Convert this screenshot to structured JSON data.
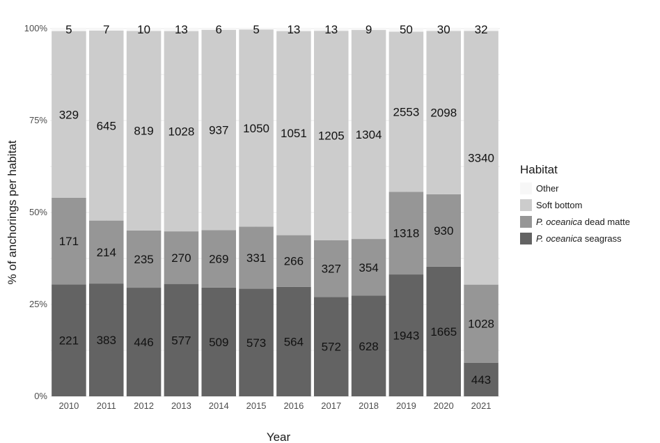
{
  "chart_data": {
    "type": "bar",
    "stacked": "percent",
    "xlabel": "Year",
    "ylabel": "% of anchorings per habitat",
    "y_ticks": [
      "0%",
      "25%",
      "50%",
      "75%",
      "100%"
    ],
    "y_tick_values": [
      0,
      25,
      50,
      75,
      100
    ],
    "ylim": [
      0,
      100
    ],
    "grid": true,
    "legend_position": "right",
    "legend_title": "Habitat",
    "categories": [
      "2010",
      "2011",
      "2012",
      "2013",
      "2014",
      "2015",
      "2016",
      "2017",
      "2018",
      "2019",
      "2020",
      "2021"
    ],
    "series": [
      {
        "name": "P. oceanica seagrass",
        "label_parts": [
          "P. oceanica",
          "seagrass"
        ],
        "color": "#636363",
        "values": [
          221,
          383,
          446,
          577,
          509,
          573,
          564,
          572,
          628,
          1943,
          1665,
          443
        ]
      },
      {
        "name": "P. oceanica dead matte",
        "label_parts": [
          "P. oceanica",
          "dead matte"
        ],
        "color": "#969696",
        "values": [
          171,
          214,
          235,
          270,
          269,
          331,
          266,
          327,
          354,
          1318,
          930,
          1028
        ]
      },
      {
        "name": "Soft bottom",
        "label_parts": [
          "",
          "Soft  bottom"
        ],
        "color": "#cccccc",
        "values": [
          329,
          645,
          819,
          1028,
          937,
          1050,
          1051,
          1205,
          1304,
          2553,
          2098,
          3340
        ]
      },
      {
        "name": "Other",
        "label_parts": [
          "",
          "Other"
        ],
        "color": "#f7f7f7",
        "values": [
          5,
          7,
          10,
          13,
          6,
          5,
          13,
          13,
          9,
          50,
          30,
          32
        ]
      }
    ]
  }
}
